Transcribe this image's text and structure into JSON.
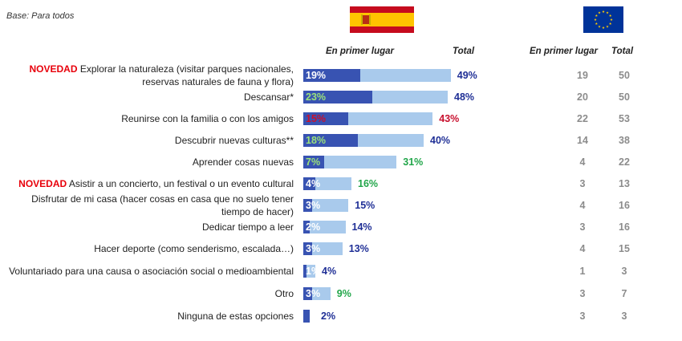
{
  "base_note": "Base: Para todos",
  "headers": {
    "es_first": "En primer lugar",
    "es_total": "Total",
    "eu_first": "En primer lugar",
    "eu_total": "Total"
  },
  "flags": {
    "spain": "spain-flag-icon",
    "eu": "eu-flag-icon"
  },
  "colors": {
    "first_bar": "#3853b2",
    "total_bar": "#a9caec",
    "novedad": "#e8000b",
    "label_blue": "#1f2f96",
    "label_green": "#22a64a",
    "label_red": "#c8102e",
    "label_white": "#ffffff",
    "label_green_light": "#9be27a",
    "eu_gray": "#8c8c8c"
  },
  "chart_data": {
    "type": "bar",
    "orientation": "horizontal",
    "categories": [
      {
        "prefix": "NOVEDAD",
        "line1": "Explorar la naturaleza (visitar parques nacionales,",
        "line2": "reservas naturales de fauna y flora)"
      },
      {
        "prefix": "",
        "line1": "Descansar*",
        "line2": ""
      },
      {
        "prefix": "",
        "line1": "Reunirse con la familia o con los amigos",
        "line2": ""
      },
      {
        "prefix": "",
        "line1": "Descubrir nuevas culturas**",
        "line2": ""
      },
      {
        "prefix": "",
        "line1": "Aprender cosas nuevas",
        "line2": ""
      },
      {
        "prefix": "NOVEDAD",
        "line1": "Asistir a un concierto, un festival o un evento cultural",
        "line2": ""
      },
      {
        "prefix": "",
        "line1": "Disfrutar de mi casa (hacer cosas en casa que no suelo tener",
        "line2": "tiempo de hacer)"
      },
      {
        "prefix": "",
        "line1": "Dedicar tiempo a leer",
        "line2": ""
      },
      {
        "prefix": "",
        "line1": "Hacer deporte (como senderismo, escalada…)",
        "line2": ""
      },
      {
        "prefix": "",
        "line1": "Voluntariado para una causa o asociación social o medioambiental",
        "line2": ""
      },
      {
        "prefix": "",
        "line1": "Otro",
        "line2": ""
      },
      {
        "prefix": "",
        "line1": "Ninguna de estas opciones",
        "line2": ""
      }
    ],
    "series": [
      {
        "name": "En primer lugar",
        "values": [
          19,
          23,
          15,
          18,
          7,
          4,
          3,
          2,
          3,
          1,
          3,
          0
        ],
        "labels": [
          "19%",
          "23%",
          "15%",
          "18%",
          "7%",
          "4%",
          "3%",
          "2%",
          "3%",
          "1%",
          "3%",
          ""
        ]
      },
      {
        "name": "Total",
        "values": [
          49,
          48,
          43,
          40,
          31,
          16,
          15,
          14,
          13,
          4,
          9,
          2
        ],
        "labels": [
          "49%",
          "48%",
          "43%",
          "40%",
          "31%",
          "16%",
          "15%",
          "14%",
          "13%",
          "4%",
          "9%",
          "2%"
        ]
      }
    ],
    "first_label_color": [
      "white",
      "green_light",
      "red",
      "green_light",
      "green_light",
      "white",
      "white",
      "white",
      "white",
      "white",
      "white",
      "white"
    ],
    "total_label_color": [
      "blue",
      "blue",
      "red",
      "blue",
      "green",
      "green",
      "blue",
      "blue",
      "blue",
      "blue",
      "green",
      "blue"
    ],
    "eu_first": [
      19,
      20,
      22,
      14,
      4,
      3,
      4,
      3,
      4,
      1,
      3,
      3
    ],
    "eu_total": [
      50,
      50,
      53,
      38,
      22,
      13,
      16,
      16,
      15,
      3,
      7,
      3
    ]
  }
}
